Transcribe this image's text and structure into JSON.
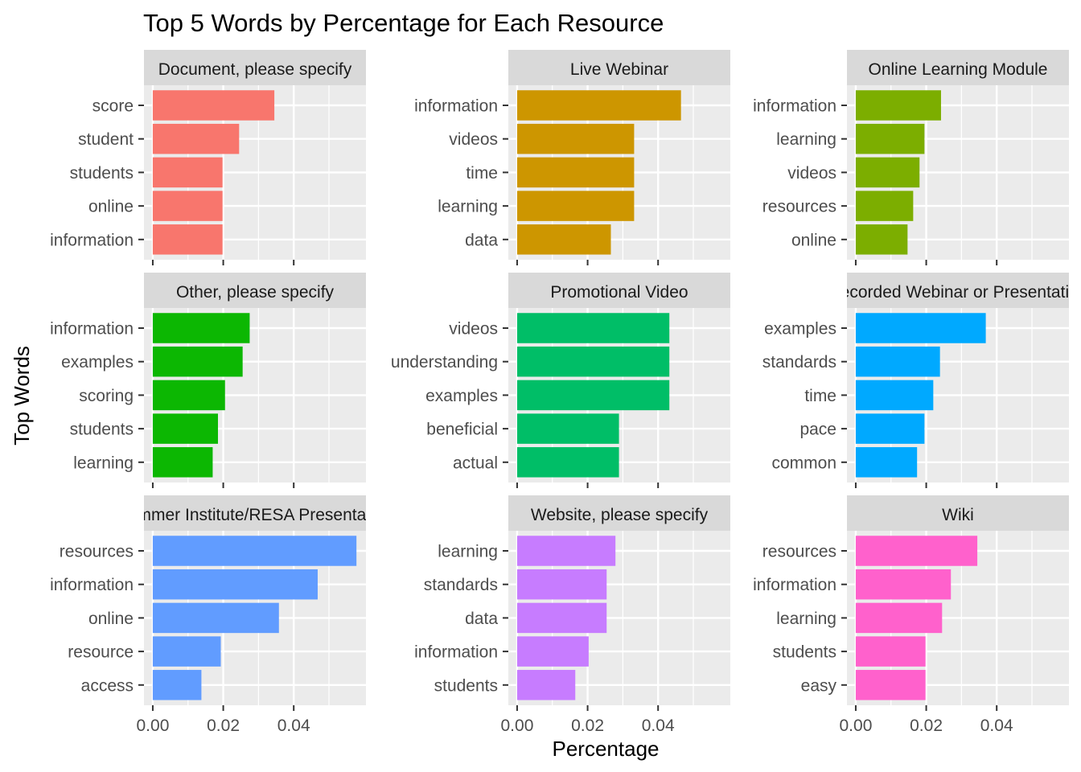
{
  "chart_data": {
    "type": "bar",
    "orientation": "horizontal",
    "title": "Top 5 Words by Percentage for Each Resource",
    "xlabel": "Percentage",
    "ylabel": "Top Words",
    "xlim": [
      -0.0025,
      0.0605
    ],
    "xticks": [
      0.0,
      0.02,
      0.04
    ],
    "xtick_labels": [
      "0.00",
      "0.02",
      "0.04"
    ],
    "grid": true,
    "legend": "none",
    "facets": [
      {
        "label": "Document, please specify",
        "color": "#F8766D",
        "words": [
          "score",
          "student",
          "students",
          "online",
          "information"
        ],
        "values": [
          0.0345,
          0.0245,
          0.0198,
          0.0198,
          0.0198
        ]
      },
      {
        "label": "Live Webinar",
        "color": "#CD9600",
        "words": [
          "information",
          "videos",
          "time",
          "learning",
          "data"
        ],
        "values": [
          0.0465,
          0.0332,
          0.0332,
          0.0332,
          0.0266
        ]
      },
      {
        "label": "Online Learning Module",
        "color": "#7CAE00",
        "words": [
          "information",
          "learning",
          "videos",
          "resources",
          "online"
        ],
        "values": [
          0.0242,
          0.0195,
          0.0181,
          0.0163,
          0.0147
        ]
      },
      {
        "label": "Other, please specify",
        "color": "#0CB702",
        "words": [
          "information",
          "examples",
          "scoring",
          "students",
          "learning"
        ],
        "values": [
          0.0275,
          0.0255,
          0.0205,
          0.0185,
          0.017
        ]
      },
      {
        "label": "Promotional Video",
        "color": "#00BE67",
        "words": [
          "videos",
          "understanding",
          "examples",
          "beneficial",
          "actual"
        ],
        "values": [
          0.0432,
          0.0432,
          0.0432,
          0.0289,
          0.0289
        ]
      },
      {
        "label": "Recorded Webinar or Presentation",
        "color": "#00A9FF",
        "words": [
          "examples",
          "standards",
          "time",
          "pace",
          "common"
        ],
        "values": [
          0.0369,
          0.0239,
          0.022,
          0.0195,
          0.0174
        ]
      },
      {
        "label": "Summer Institute/RESA Presentation",
        "color": "#619CFF",
        "words": [
          "resources",
          "information",
          "online",
          "resource",
          "access"
        ],
        "values": [
          0.0578,
          0.0468,
          0.0358,
          0.0193,
          0.0138
        ]
      },
      {
        "label": "Website, please specify",
        "color": "#C77CFF",
        "words": [
          "learning",
          "standards",
          "data",
          "information",
          "students"
        ],
        "values": [
          0.0279,
          0.0254,
          0.0254,
          0.0203,
          0.0165
        ]
      },
      {
        "label": "Wiki",
        "color": "#FF61CC",
        "words": [
          "resources",
          "information",
          "learning",
          "students",
          "easy"
        ],
        "values": [
          0.0345,
          0.027,
          0.0245,
          0.0198,
          0.0198
        ]
      }
    ]
  }
}
